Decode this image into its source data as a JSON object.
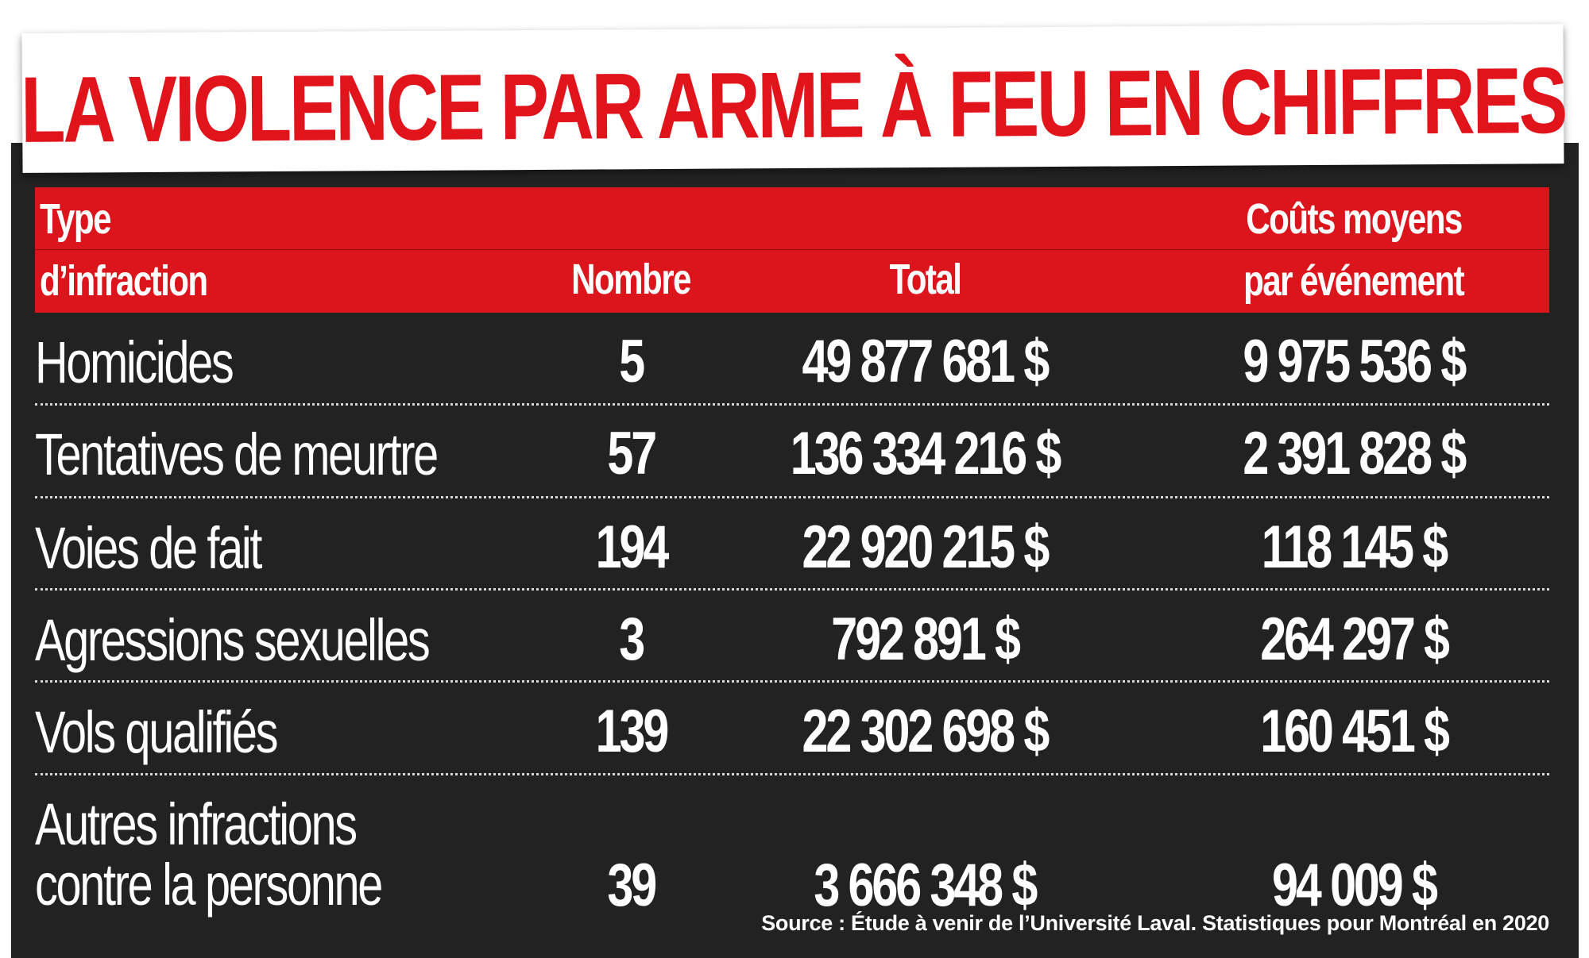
{
  "title": "LA VIOLENCE PAR ARME À FEU EN CHIFFRES",
  "header": {
    "type_line1": "Type",
    "type_line2": "d’infraction",
    "nombre": "Nombre",
    "total": "Total",
    "cout_line1": "Coûts moyens",
    "cout_line2": "par événement"
  },
  "rows": [
    {
      "label": "Homicides",
      "nombre": "5",
      "total": "49 877 681 $",
      "cout": "9 975 536 $"
    },
    {
      "label": "Tentatives de meurtre",
      "nombre": "57",
      "total": "136 334 216 $",
      "cout": "2 391 828 $"
    },
    {
      "label": "Voies de fait",
      "nombre": "194",
      "total": "22 920 215 $",
      "cout": "118 145 $"
    },
    {
      "label": "Agressions sexuelles",
      "nombre": "3",
      "total": "792 891 $",
      "cout": "264 297 $"
    },
    {
      "label": "Vols qualifiés",
      "nombre": "139",
      "total": "22 302 698 $",
      "cout": "160 451 $"
    },
    {
      "label_line1": "Autres infractions",
      "label_line2": "contre la personne",
      "nombre": "39",
      "total": "3 666 348 $",
      "cout": "94 009 $"
    }
  ],
  "source": "Source : Étude à venir de l’Université Laval. Statistiques pour Montréal en 2020",
  "colors": {
    "accent_red": "#dc141c",
    "title_red": "#e1141c",
    "background_dark": "#222222",
    "text_white": "#ffffff"
  }
}
